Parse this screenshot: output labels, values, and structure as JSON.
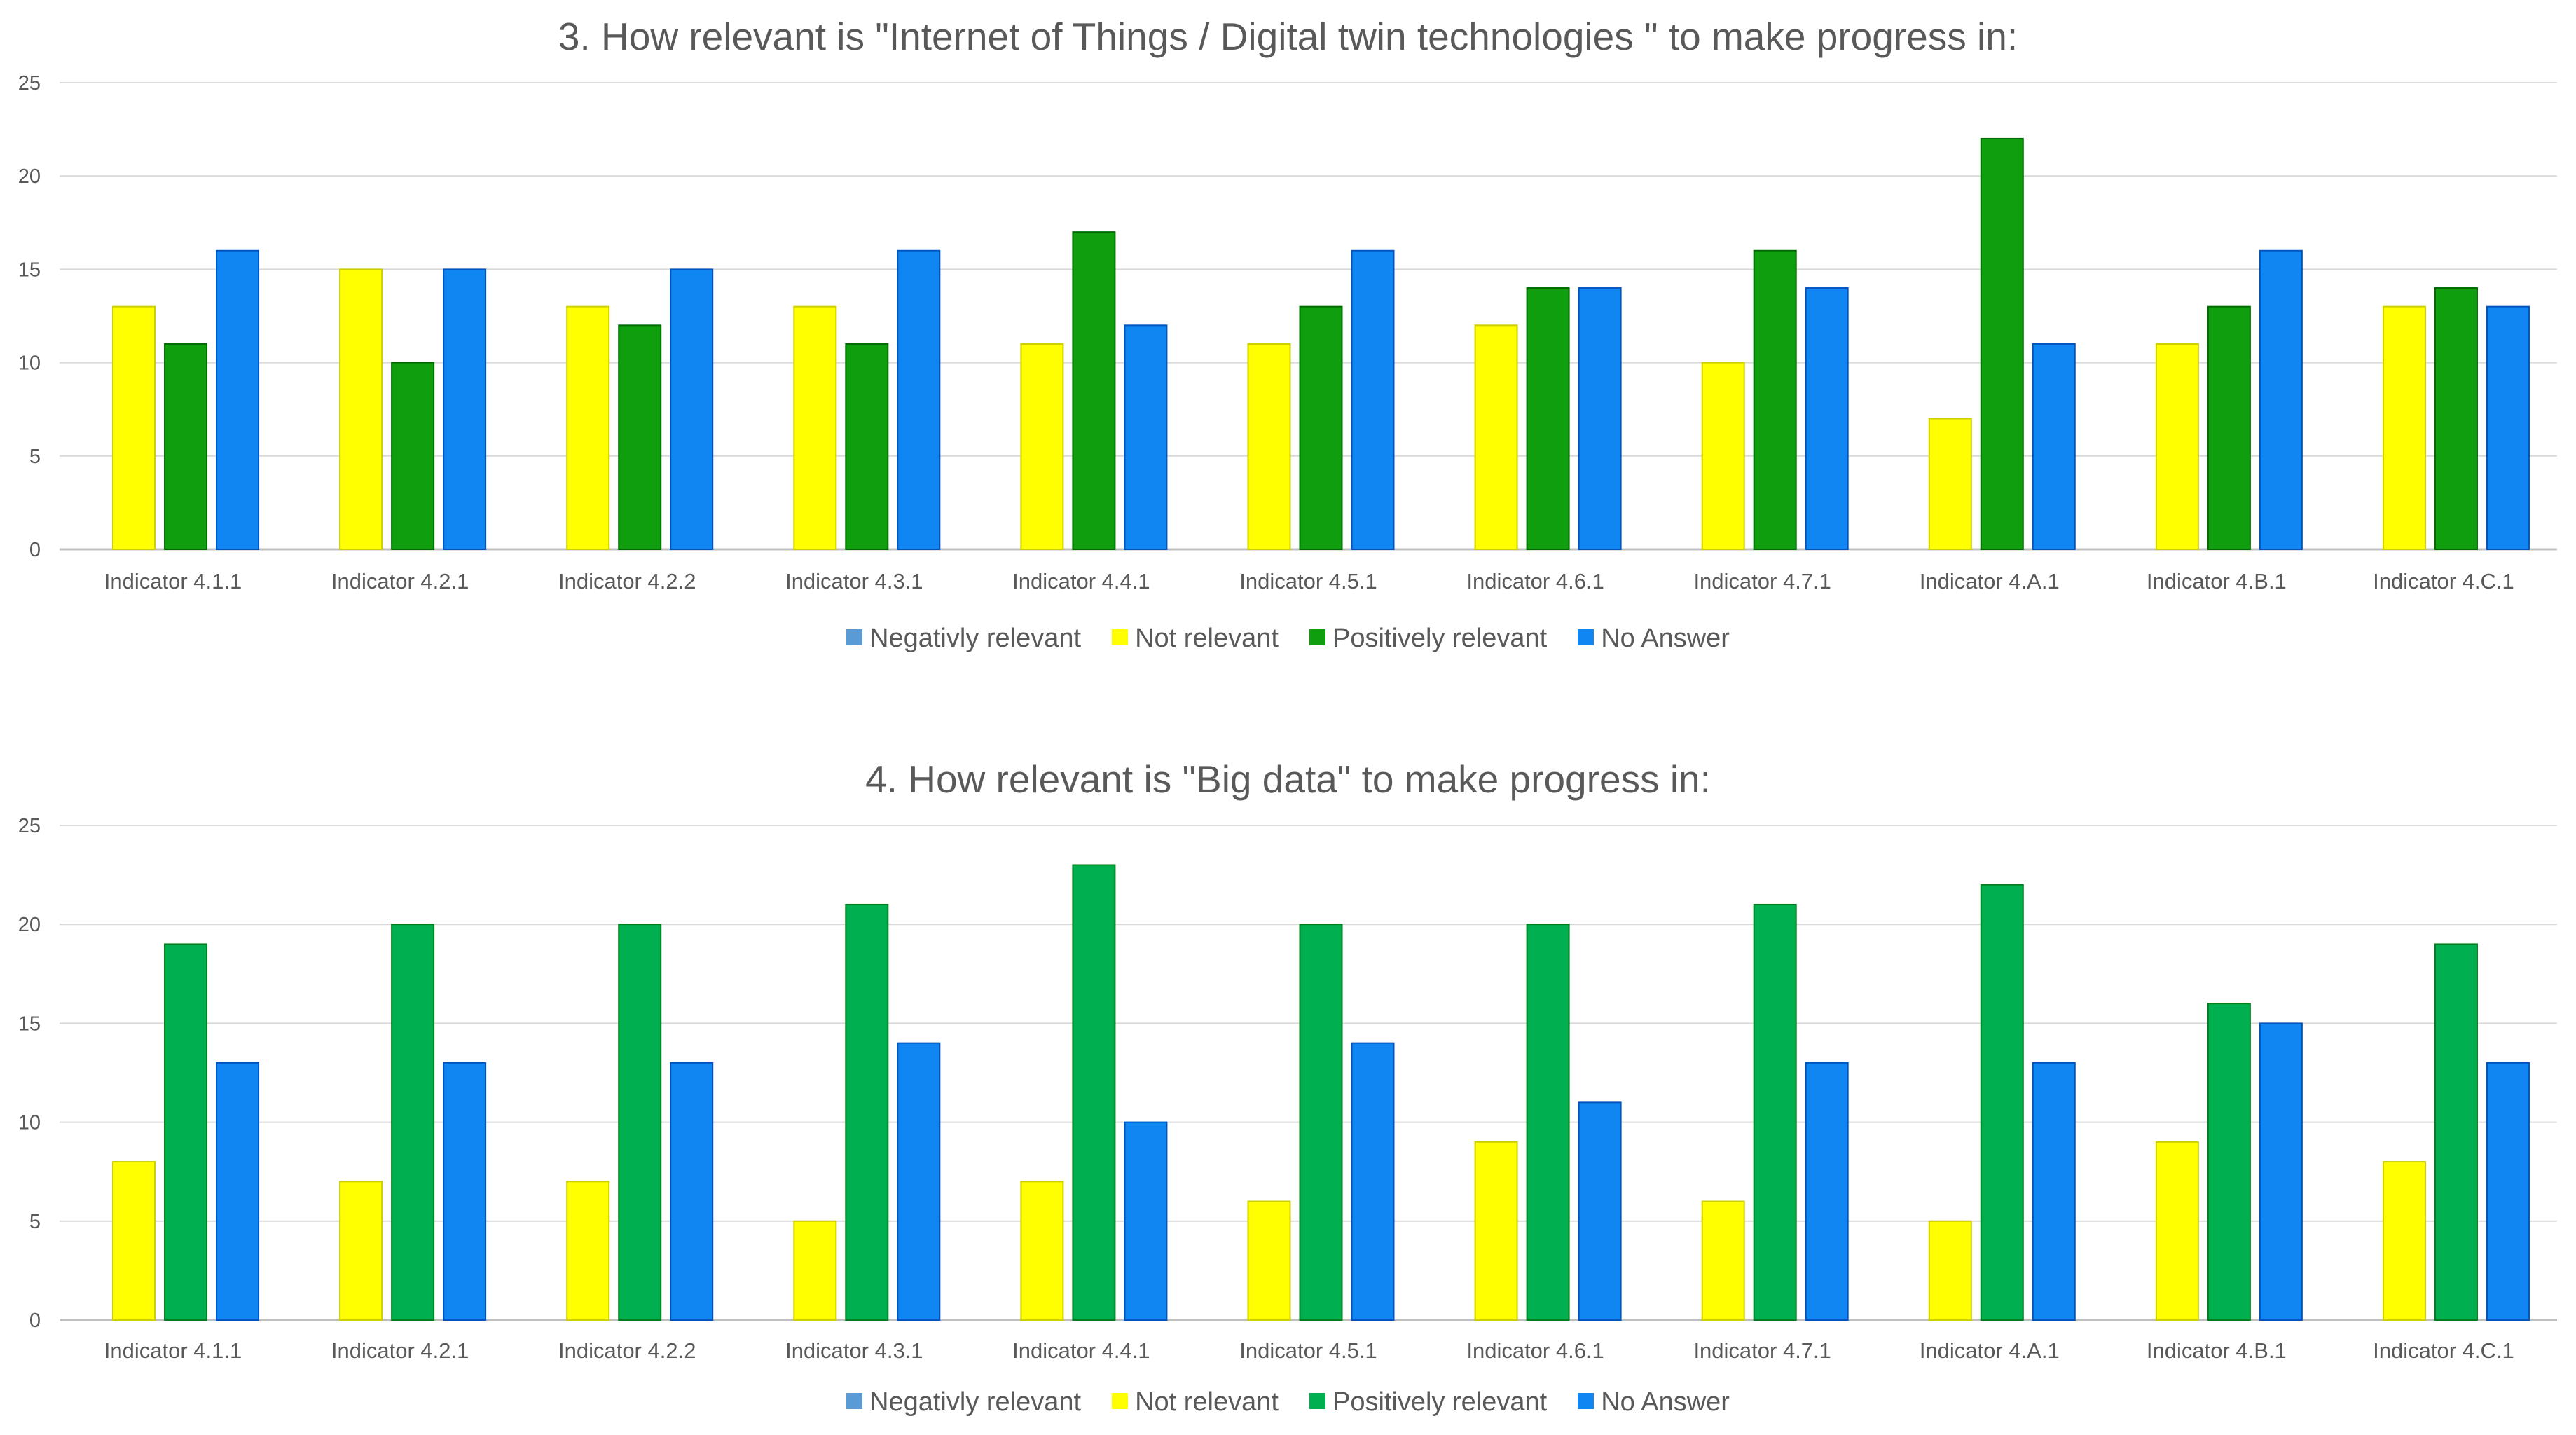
{
  "chart_data": [
    {
      "type": "bar",
      "title": "3. How relevant is \"Internet  of Things / Digital twin technologies \" to make progress in:",
      "xlabel": "",
      "ylabel": "",
      "ylim": [
        0,
        25
      ],
      "yticks": [
        0,
        5,
        10,
        15,
        20,
        25
      ],
      "grid": true,
      "legend_position": "bottom",
      "categories": [
        "Indicator 4.1.1",
        "Indicator 4.2.1",
        "Indicator 4.2.2",
        "Indicator 4.3.1",
        "Indicator 4.4.1",
        "Indicator 4.5.1",
        "Indicator 4.6.1",
        "Indicator 4.7.1",
        "Indicator 4.A.1",
        "Indicator 4.B.1",
        "Indicator 4.C.1"
      ],
      "series": [
        {
          "name": "Negativly relevant",
          "color": "#5b9bd5",
          "values": [
            0,
            0,
            0,
            0,
            0,
            0,
            0,
            0,
            0,
            0,
            0
          ]
        },
        {
          "name": "Not relevant",
          "color": "#ffff00",
          "values": [
            13,
            15,
            13,
            13,
            11,
            11,
            12,
            10,
            7,
            11,
            13
          ]
        },
        {
          "name": "Positively relevant",
          "color": "#0e9e0e",
          "values": [
            11,
            10,
            12,
            11,
            17,
            13,
            14,
            16,
            22,
            13,
            14
          ]
        },
        {
          "name": "No Answer",
          "color": "#0f86f2",
          "values": [
            16,
            15,
            15,
            16,
            12,
            16,
            14,
            14,
            11,
            16,
            13
          ]
        }
      ]
    },
    {
      "type": "bar",
      "title": "4. How relevant is \"Big data\" to make progress in:",
      "xlabel": "",
      "ylabel": "",
      "ylim": [
        0,
        25
      ],
      "yticks": [
        0,
        5,
        10,
        15,
        20,
        25
      ],
      "grid": true,
      "legend_position": "bottom",
      "categories": [
        "Indicator 4.1.1",
        "Indicator 4.2.1",
        "Indicator 4.2.2",
        "Indicator 4.3.1",
        "Indicator 4.4.1",
        "Indicator 4.5.1",
        "Indicator 4.6.1",
        "Indicator 4.7.1",
        "Indicator 4.A.1",
        "Indicator 4.B.1",
        "Indicator 4.C.1"
      ],
      "series": [
        {
          "name": "Negativly relevant",
          "color": "#5b9bd5",
          "values": [
            0,
            0,
            0,
            0,
            0,
            0,
            0,
            0,
            0,
            0,
            0
          ]
        },
        {
          "name": "Not relevant",
          "color": "#ffff00",
          "values": [
            8,
            7,
            7,
            5,
            7,
            6,
            9,
            6,
            5,
            9,
            8
          ]
        },
        {
          "name": "Positively relevant",
          "color": "#00b050",
          "values": [
            19,
            20,
            20,
            21,
            23,
            20,
            20,
            21,
            22,
            16,
            19
          ]
        },
        {
          "name": "No Answer",
          "color": "#0f86f2",
          "values": [
            13,
            13,
            13,
            14,
            10,
            14,
            11,
            13,
            13,
            15,
            13
          ]
        }
      ]
    }
  ]
}
